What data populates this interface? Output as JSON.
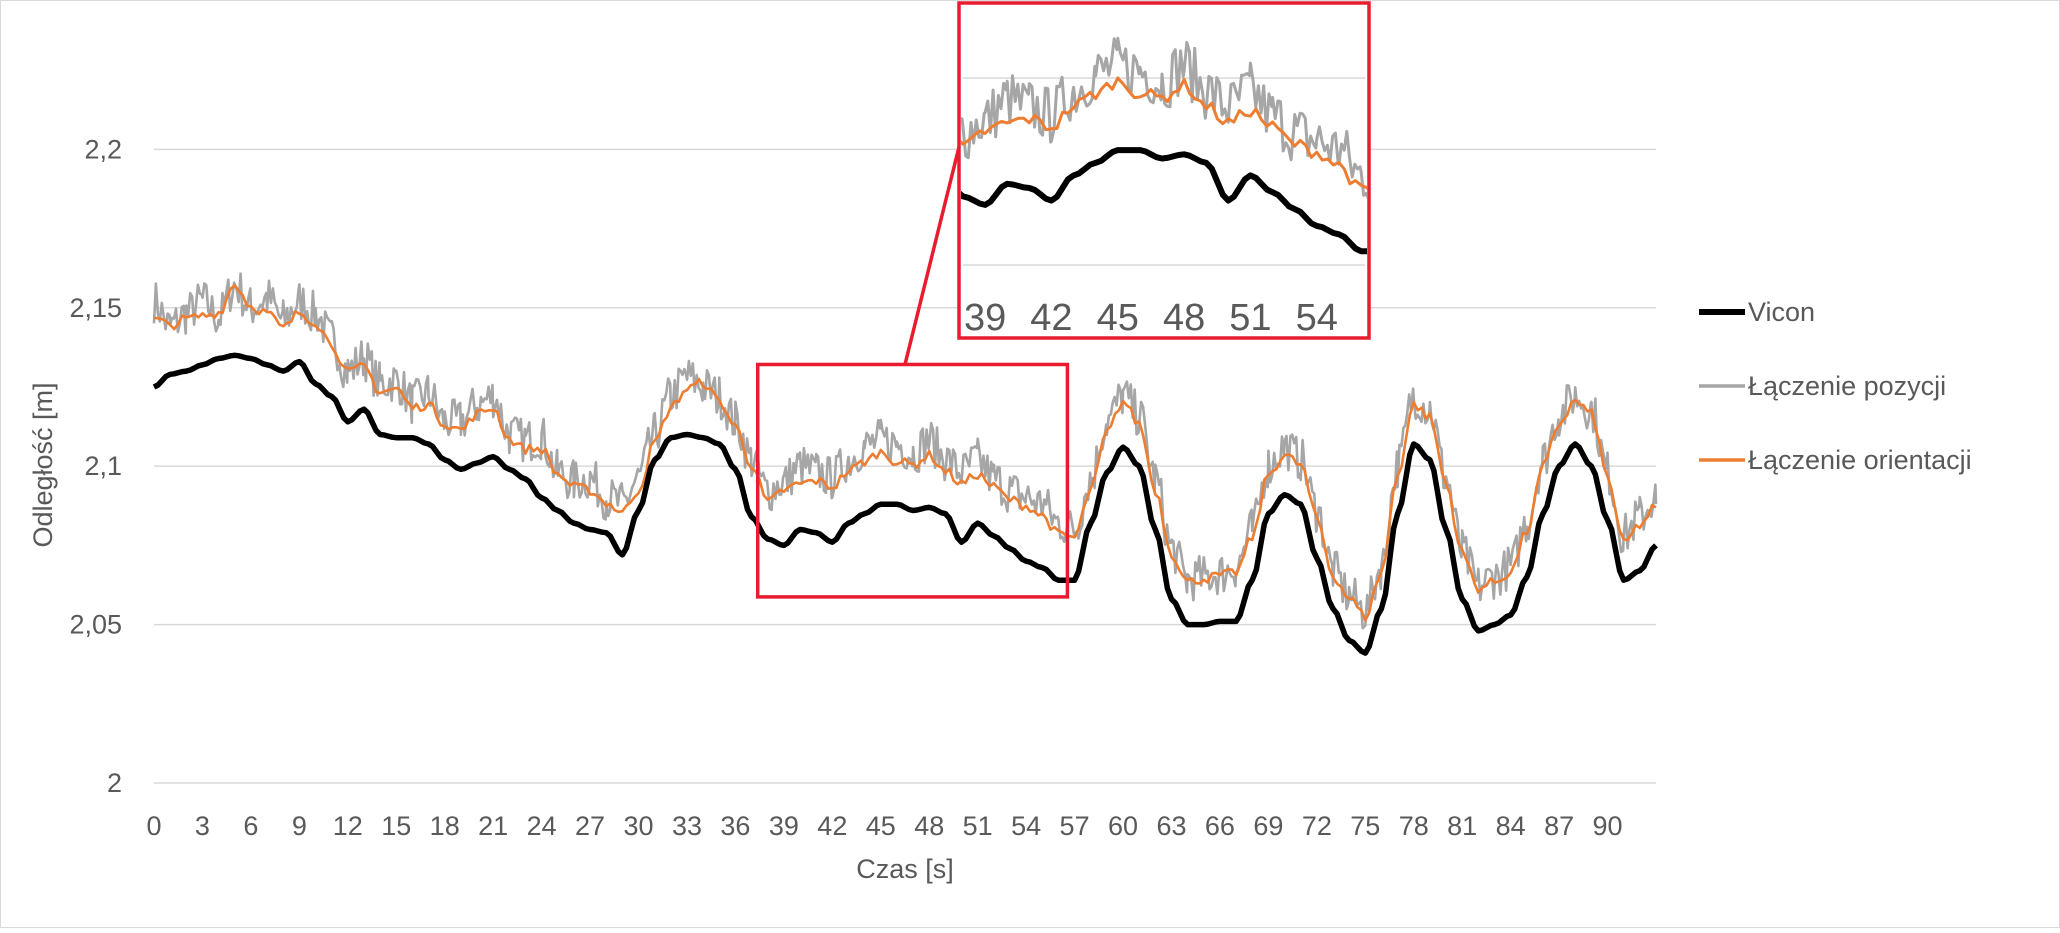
{
  "chart_data": {
    "type": "line",
    "title": "",
    "xlabel": "Czas [s]",
    "ylabel": "Odległość [m]",
    "xlim": [
      0,
      93
    ],
    "ylim": [
      2,
      2.22
    ],
    "x_ticks": [
      "0",
      "3",
      "6",
      "9",
      "12",
      "15",
      "18",
      "21",
      "24",
      "27",
      "30",
      "33",
      "36",
      "39",
      "42",
      "45",
      "48",
      "51",
      "54",
      "57",
      "60",
      "63",
      "66",
      "69",
      "72",
      "75",
      "78",
      "81",
      "84",
      "87",
      "90"
    ],
    "y_ticks": [
      "2",
      "2,05",
      "2,1",
      "2,15",
      "2,2"
    ],
    "grid": "horizontal",
    "legend_position": "right",
    "series": [
      {
        "name": "Vicon",
        "color": "#000000",
        "x": [
          0,
          1,
          2,
          3,
          4,
          5,
          6,
          7,
          8,
          9,
          10,
          11,
          12,
          13,
          14,
          15,
          16,
          17,
          18,
          19,
          20,
          21,
          22,
          23,
          24,
          25,
          26,
          27,
          28,
          29,
          30,
          31,
          32,
          33,
          34,
          35,
          36,
          37,
          38,
          39,
          40,
          41,
          42,
          43,
          44,
          45,
          46,
          47,
          48,
          49,
          50,
          51,
          52,
          53,
          54,
          55,
          56,
          57,
          58,
          59,
          60,
          61,
          62,
          63,
          64,
          65,
          66,
          67,
          68,
          69,
          70,
          71,
          72,
          73,
          74,
          75,
          76,
          77,
          78,
          79,
          80,
          81,
          82,
          83,
          84,
          85,
          86,
          87,
          88,
          89,
          90,
          91,
          92,
          93
        ],
        "values": [
          2.125,
          2.129,
          2.13,
          2.132,
          2.134,
          2.135,
          2.134,
          2.132,
          2.13,
          2.133,
          2.126,
          2.122,
          2.114,
          2.118,
          2.11,
          2.109,
          2.109,
          2.107,
          2.102,
          2.099,
          2.101,
          2.103,
          2.099,
          2.096,
          2.09,
          2.086,
          2.082,
          2.08,
          2.079,
          2.072,
          2.086,
          2.102,
          2.109,
          2.11,
          2.109,
          2.107,
          2.099,
          2.084,
          2.077,
          2.075,
          2.08,
          2.079,
          2.076,
          2.082,
          2.085,
          2.088,
          2.088,
          2.086,
          2.087,
          2.085,
          2.076,
          2.082,
          2.078,
          2.074,
          2.07,
          2.068,
          2.064,
          2.064,
          2.082,
          2.098,
          2.106,
          2.1,
          2.08,
          2.058,
          2.05,
          2.05,
          2.051,
          2.051,
          2.064,
          2.085,
          2.091,
          2.088,
          2.071,
          2.055,
          2.045,
          2.041,
          2.055,
          2.085,
          2.107,
          2.102,
          2.08,
          2.058,
          2.048,
          2.05,
          2.053,
          2.065,
          2.085,
          2.1,
          2.107,
          2.1,
          2.083,
          2.064,
          2.067,
          2.075
        ]
      },
      {
        "name": "Łączenie pozycji",
        "color": "#a6a6a6",
        "x": [
          0,
          1,
          2,
          3,
          4,
          5,
          6,
          7,
          8,
          9,
          10,
          11,
          12,
          13,
          14,
          15,
          16,
          17,
          18,
          19,
          20,
          21,
          22,
          23,
          24,
          25,
          26,
          27,
          28,
          29,
          30,
          31,
          32,
          33,
          34,
          35,
          36,
          37,
          38,
          39,
          40,
          41,
          42,
          43,
          44,
          45,
          46,
          47,
          48,
          49,
          50,
          51,
          52,
          53,
          54,
          55,
          56,
          57,
          58,
          59,
          60,
          61,
          62,
          63,
          64,
          65,
          66,
          67,
          68,
          69,
          70,
          71,
          72,
          73,
          74,
          75,
          76,
          77,
          78,
          79,
          80,
          81,
          82,
          83,
          84,
          85,
          86,
          87,
          88,
          89,
          90,
          91,
          92,
          93
        ],
        "values": [
          2.15,
          2.142,
          2.146,
          2.15,
          2.145,
          2.155,
          2.148,
          2.151,
          2.144,
          2.15,
          2.146,
          2.138,
          2.128,
          2.132,
          2.124,
          2.125,
          2.118,
          2.121,
          2.112,
          2.112,
          2.117,
          2.12,
          2.108,
          2.106,
          2.107,
          2.096,
          2.093,
          2.094,
          2.088,
          2.086,
          2.094,
          2.108,
          2.12,
          2.126,
          2.123,
          2.12,
          2.112,
          2.1,
          2.09,
          2.093,
          2.098,
          2.096,
          2.094,
          2.1,
          2.104,
          2.106,
          2.105,
          2.102,
          2.106,
          2.1,
          2.096,
          2.1,
          2.094,
          2.09,
          2.088,
          2.086,
          2.08,
          2.078,
          2.094,
          2.112,
          2.12,
          2.114,
          2.094,
          2.072,
          2.062,
          2.063,
          2.064,
          2.066,
          2.078,
          2.098,
          2.104,
          2.1,
          2.084,
          2.065,
          2.057,
          2.052,
          2.066,
          2.098,
          2.12,
          2.116,
          2.094,
          2.071,
          2.06,
          2.063,
          2.066,
          2.08,
          2.1,
          2.114,
          2.12,
          2.116,
          2.096,
          2.076,
          2.082,
          2.088
        ]
      },
      {
        "name": "Łączenie orientacji",
        "color": "#ed7d31",
        "x": [
          0,
          1,
          2,
          3,
          4,
          5,
          6,
          7,
          8,
          9,
          10,
          11,
          12,
          13,
          14,
          15,
          16,
          17,
          18,
          19,
          20,
          21,
          22,
          23,
          24,
          25,
          26,
          27,
          28,
          29,
          30,
          31,
          32,
          33,
          34,
          35,
          36,
          37,
          38,
          39,
          40,
          41,
          42,
          43,
          44,
          45,
          46,
          47,
          48,
          49,
          50,
          51,
          52,
          53,
          54,
          55,
          56,
          57,
          58,
          59,
          60,
          61,
          62,
          63,
          64,
          65,
          66,
          67,
          68,
          69,
          70,
          71,
          72,
          73,
          74,
          75,
          76,
          77,
          78,
          79,
          80,
          81,
          82,
          83,
          84,
          85,
          86,
          87,
          88,
          89,
          90,
          91,
          92,
          93
        ],
        "values": [
          2.146,
          2.144,
          2.146,
          2.147,
          2.148,
          2.157,
          2.15,
          2.148,
          2.143,
          2.148,
          2.145,
          2.138,
          2.129,
          2.131,
          2.123,
          2.124,
          2.118,
          2.119,
          2.113,
          2.111,
          2.116,
          2.118,
          2.108,
          2.105,
          2.105,
          2.097,
          2.093,
          2.092,
          2.088,
          2.085,
          2.092,
          2.107,
          2.118,
          2.124,
          2.126,
          2.12,
          2.112,
          2.1,
          2.088,
          2.092,
          2.094,
          2.095,
          2.093,
          2.098,
          2.101,
          2.104,
          2.101,
          2.1,
          2.103,
          2.098,
          2.094,
          2.097,
          2.093,
          2.089,
          2.087,
          2.084,
          2.078,
          2.077,
          2.092,
          2.11,
          2.12,
          2.113,
          2.092,
          2.072,
          2.063,
          2.064,
          2.065,
          2.066,
          2.077,
          2.097,
          2.103,
          2.1,
          2.083,
          2.065,
          2.058,
          2.052,
          2.066,
          2.097,
          2.119,
          2.115,
          2.094,
          2.072,
          2.061,
          2.063,
          2.066,
          2.079,
          2.099,
          2.113,
          2.12,
          2.116,
          2.096,
          2.075,
          2.081,
          2.087
        ]
      }
    ],
    "highlight_box": {
      "x_range": [
        38,
        56
      ],
      "y_range": [
        2.06,
        2.122
      ]
    },
    "inset": {
      "x_range": [
        38,
        56
      ],
      "y_range": [
        2.06,
        2.122
      ],
      "x_ticks": [
        "39",
        "42",
        "45",
        "48",
        "51",
        "54"
      ]
    }
  }
}
